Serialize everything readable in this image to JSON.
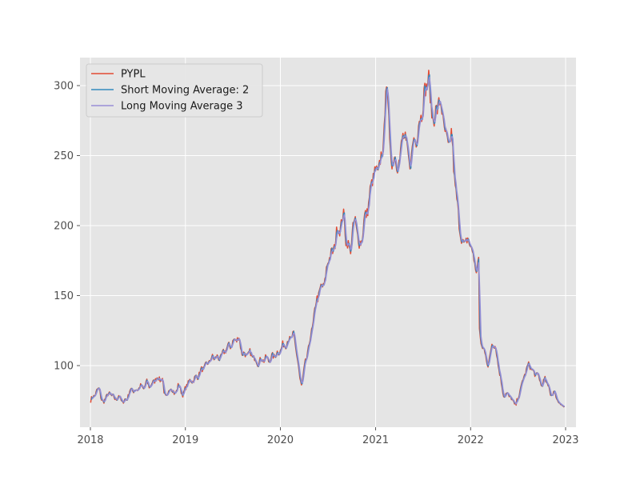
{
  "chart_data": {
    "type": "line",
    "title": "",
    "xlabel": "",
    "ylabel": "",
    "xlim": [
      "2017-11-22",
      "2023-02-10"
    ],
    "ylim": [
      56,
      320
    ],
    "x_ticks": [
      {
        "date": "2018-01-01",
        "label": "2018"
      },
      {
        "date": "2019-01-01",
        "label": "2019"
      },
      {
        "date": "2020-01-01",
        "label": "2020"
      },
      {
        "date": "2021-01-01",
        "label": "2021"
      },
      {
        "date": "2022-01-01",
        "label": "2022"
      },
      {
        "date": "2023-01-01",
        "label": "2023"
      }
    ],
    "y_ticks": [
      100,
      150,
      200,
      250,
      300
    ],
    "grid": true,
    "legend_position": "top-left",
    "background_color": "#e5e5e5",
    "grid_color": "#ffffff",
    "series": [
      {
        "name": "PYPL",
        "color": "#e24a33",
        "window": 1
      },
      {
        "name": "Short Moving Average: 2",
        "color": "#348abd",
        "window": 2
      },
      {
        "name": "Long Moving Average 3",
        "color": "#988ed5",
        "window": 3
      }
    ],
    "price_points": [
      [
        "2018-01-02",
        75
      ],
      [
        "2018-01-20",
        80
      ],
      [
        "2018-02-05",
        84
      ],
      [
        "2018-02-12",
        76
      ],
      [
        "2018-02-20",
        73
      ],
      [
        "2018-03-01",
        78
      ],
      [
        "2018-03-20",
        80
      ],
      [
        "2018-04-05",
        76
      ],
      [
        "2018-04-20",
        78
      ],
      [
        "2018-05-05",
        74
      ],
      [
        "2018-05-20",
        76
      ],
      [
        "2018-06-05",
        83
      ],
      [
        "2018-06-25",
        82
      ],
      [
        "2018-07-10",
        85
      ],
      [
        "2018-07-25",
        84
      ],
      [
        "2018-08-05",
        88
      ],
      [
        "2018-08-20",
        85
      ],
      [
        "2018-09-05",
        90
      ],
      [
        "2018-09-20",
        91
      ],
      [
        "2018-10-05",
        90
      ],
      [
        "2018-10-12",
        80
      ],
      [
        "2018-10-25",
        77
      ],
      [
        "2018-11-05",
        86
      ],
      [
        "2018-11-20",
        79
      ],
      [
        "2018-12-05",
        86
      ],
      [
        "2018-12-24",
        79
      ],
      [
        "2019-01-10",
        88
      ],
      [
        "2019-01-25",
        89
      ],
      [
        "2019-02-15",
        92
      ],
      [
        "2019-03-05",
        97
      ],
      [
        "2019-03-25",
        101
      ],
      [
        "2019-04-10",
        105
      ],
      [
        "2019-04-25",
        106
      ],
      [
        "2019-05-10",
        105
      ],
      [
        "2019-05-25",
        108
      ],
      [
        "2019-06-05",
        112
      ],
      [
        "2019-06-20",
        114
      ],
      [
        "2019-07-10",
        118
      ],
      [
        "2019-07-25",
        120
      ],
      [
        "2019-08-05",
        110
      ],
      [
        "2019-08-20",
        107
      ],
      [
        "2019-09-05",
        109
      ],
      [
        "2019-09-20",
        106
      ],
      [
        "2019-10-05",
        102
      ],
      [
        "2019-10-20",
        104
      ],
      [
        "2019-11-05",
        105
      ],
      [
        "2019-11-20",
        104
      ],
      [
        "2019-12-05",
        107
      ],
      [
        "2019-12-24",
        109
      ],
      [
        "2020-01-10",
        114
      ],
      [
        "2020-01-25",
        116
      ],
      [
        "2020-02-10",
        120
      ],
      [
        "2020-02-20",
        122
      ],
      [
        "2020-03-05",
        108
      ],
      [
        "2020-03-16",
        90
      ],
      [
        "2020-03-23",
        86
      ],
      [
        "2020-04-05",
        101
      ],
      [
        "2020-04-20",
        114
      ],
      [
        "2020-05-05",
        130
      ],
      [
        "2020-05-20",
        148
      ],
      [
        "2020-06-05",
        155
      ],
      [
        "2020-06-20",
        160
      ],
      [
        "2020-07-05",
        178
      ],
      [
        "2020-07-20",
        180
      ],
      [
        "2020-08-05",
        195
      ],
      [
        "2020-08-20",
        200
      ],
      [
        "2020-09-02",
        208
      ],
      [
        "2020-09-10",
        188
      ],
      [
        "2020-09-25",
        182
      ],
      [
        "2020-10-05",
        196
      ],
      [
        "2020-10-15",
        205
      ],
      [
        "2020-10-30",
        185
      ],
      [
        "2020-11-10",
        192
      ],
      [
        "2020-11-20",
        205
      ],
      [
        "2020-12-05",
        215
      ],
      [
        "2020-12-20",
        235
      ],
      [
        "2021-01-05",
        238
      ],
      [
        "2021-01-20",
        245
      ],
      [
        "2021-02-01",
        260
      ],
      [
        "2021-02-10",
        303
      ],
      [
        "2021-02-20",
        280
      ],
      [
        "2021-03-05",
        238
      ],
      [
        "2021-03-15",
        255
      ],
      [
        "2021-03-25",
        238
      ],
      [
        "2021-04-10",
        258
      ],
      [
        "2021-04-25",
        265
      ],
      [
        "2021-05-10",
        242
      ],
      [
        "2021-05-25",
        258
      ],
      [
        "2021-06-10",
        265
      ],
      [
        "2021-06-25",
        280
      ],
      [
        "2021-07-10",
        295
      ],
      [
        "2021-07-23",
        308
      ],
      [
        "2021-08-01",
        285
      ],
      [
        "2021-08-15",
        275
      ],
      [
        "2021-09-01",
        290
      ],
      [
        "2021-09-15",
        280
      ],
      [
        "2021-09-30",
        260
      ],
      [
        "2021-10-10",
        258
      ],
      [
        "2021-10-20",
        265
      ],
      [
        "2021-11-01",
        233
      ],
      [
        "2021-11-10",
        215
      ],
      [
        "2021-11-20",
        200
      ],
      [
        "2021-12-01",
        185
      ],
      [
        "2021-12-15",
        190
      ],
      [
        "2022-01-05",
        185
      ],
      [
        "2022-01-20",
        168
      ],
      [
        "2022-02-01",
        175
      ],
      [
        "2022-02-04",
        123
      ],
      [
        "2022-02-15",
        113
      ],
      [
        "2022-03-01",
        108
      ],
      [
        "2022-03-10",
        98
      ],
      [
        "2022-03-25",
        118
      ],
      [
        "2022-04-10",
        110
      ],
      [
        "2022-04-28",
        88
      ],
      [
        "2022-05-10",
        78
      ],
      [
        "2022-05-25",
        80
      ],
      [
        "2022-06-10",
        75
      ],
      [
        "2022-06-25",
        72
      ],
      [
        "2022-07-10",
        82
      ],
      [
        "2022-07-25",
        92
      ],
      [
        "2022-08-05",
        98
      ],
      [
        "2022-08-16",
        101
      ],
      [
        "2022-09-01",
        94
      ],
      [
        "2022-09-15",
        94
      ],
      [
        "2022-09-30",
        86
      ],
      [
        "2022-10-15",
        90
      ],
      [
        "2022-10-30",
        84
      ],
      [
        "2022-11-05",
        78
      ],
      [
        "2022-11-15",
        82
      ],
      [
        "2022-11-30",
        76
      ],
      [
        "2022-12-15",
        72
      ],
      [
        "2022-12-30",
        71
      ]
    ]
  }
}
